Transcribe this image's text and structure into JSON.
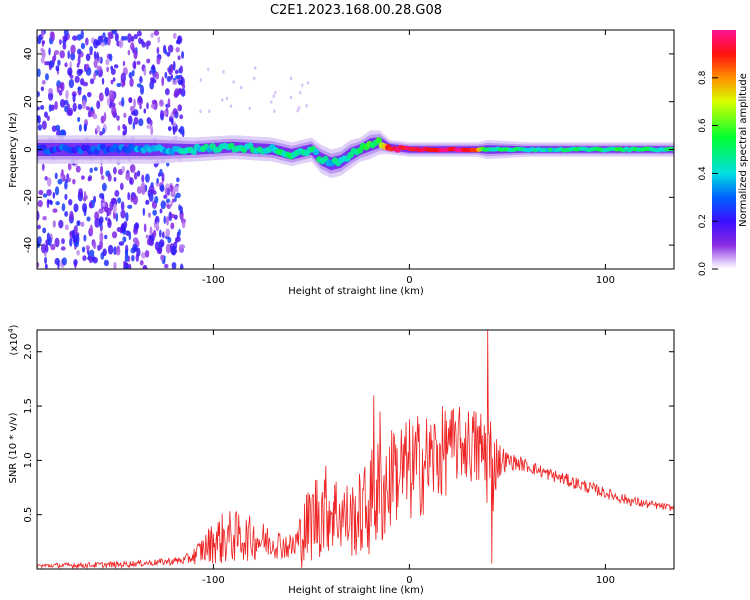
{
  "title": "C2E1.2023.168.00.28.G08",
  "colors": {
    "snr_line": "#ee2222",
    "spectrogram_core": "#33dd55",
    "spectrogram_halo": "#7a2cf0",
    "spectrogram_faint": "#d9c8f6"
  },
  "chart_data": [
    {
      "name": "spectrogram",
      "type": "heatmap",
      "xlabel": "Height of straight line (km)",
      "ylabel": "Frequency (Hz)",
      "xlim": [
        -190,
        135
      ],
      "ylim": [
        -50,
        50
      ],
      "x_ticks": [
        -100,
        0,
        100
      ],
      "x_tick_labels": [
        "-100",
        "0",
        "100"
      ],
      "y_ticks": [
        -40,
        -20,
        0,
        20,
        40
      ],
      "y_tick_labels": [
        "-40",
        "-20",
        "0",
        "20",
        "40"
      ],
      "colorbar": {
        "label": "Normalized spectral amplitude",
        "range": [
          0.0,
          1.0
        ],
        "ticks": [
          0.0,
          0.2,
          0.4,
          0.6,
          0.8
        ],
        "tick_labels": [
          "0.0",
          "0.2",
          "0.4",
          "0.6",
          "0.8"
        ],
        "colormap": [
          "#ffffff",
          "#7f00ff",
          "#0000ff",
          "#00ffff",
          "#00ff00",
          "#ffff00",
          "#ff8000",
          "#ff0000",
          "#ff0080"
        ]
      },
      "ridge": {
        "x": [
          -190,
          -170,
          -150,
          -130,
          -110,
          -90,
          -70,
          -60,
          -50,
          -45,
          -40,
          -35,
          -30,
          -25,
          -20,
          -15,
          -10,
          0,
          10,
          20,
          30,
          35,
          40,
          60,
          80,
          100,
          120,
          135
        ],
        "freq": [
          0,
          0,
          0,
          0,
          0,
          1,
          0,
          -2,
          0,
          -4,
          -6,
          -5,
          -2,
          0,
          2,
          3,
          1,
          0,
          0,
          0,
          0,
          0,
          0,
          0,
          0,
          0,
          0,
          0
        ],
        "amplitude": [
          0.25,
          0.25,
          0.3,
          0.35,
          0.4,
          0.45,
          0.45,
          0.45,
          0.45,
          0.45,
          0.4,
          0.45,
          0.5,
          0.5,
          0.55,
          0.6,
          0.9,
          0.95,
          0.9,
          0.95,
          0.95,
          0.8,
          0.5,
          0.45,
          0.45,
          0.5,
          0.5,
          0.45
        ],
        "halo_half_width_hz": [
          6,
          6,
          6,
          6,
          5,
          5,
          5,
          5,
          5,
          6,
          6,
          6,
          6,
          5,
          6,
          5,
          3,
          3,
          3,
          3,
          3,
          3,
          4,
          3,
          3,
          3,
          3,
          3
        ]
      },
      "noise_region_km": [
        -190,
        -115
      ]
    },
    {
      "name": "snr",
      "type": "line",
      "xlabel": "Height of straight line (km)",
      "ylabel": "SNR (10 * v/v)",
      "y_multiplier_label": "(x10",
      "y_multiplier_exp": "4",
      "y_multiplier_close": ")",
      "xlim": [
        -190,
        135
      ],
      "ylim": [
        0,
        2.2
      ],
      "x_ticks": [
        -100,
        0,
        100
      ],
      "x_tick_labels": [
        "-100",
        "0",
        "100"
      ],
      "y_ticks": [
        0.5,
        1.0,
        1.5,
        2.0
      ],
      "y_tick_labels": [
        "0.5",
        "1.0",
        "1.5",
        "2.0"
      ],
      "envelope": {
        "x": [
          -190,
          -150,
          -130,
          -115,
          -110,
          -100,
          -95,
          -90,
          -80,
          -70,
          -60,
          -55,
          -50,
          -45,
          -40,
          -35,
          -30,
          -25,
          -20,
          -15,
          -10,
          -5,
          0,
          5,
          10,
          15,
          20,
          25,
          30,
          35,
          40,
          42,
          45,
          50,
          60,
          70,
          80,
          90,
          100,
          110,
          120,
          135
        ],
        "mean": [
          0.03,
          0.04,
          0.06,
          0.08,
          0.12,
          0.25,
          0.28,
          0.3,
          0.28,
          0.25,
          0.2,
          0.28,
          0.45,
          0.55,
          0.55,
          0.5,
          0.45,
          0.5,
          0.6,
          0.7,
          0.8,
          0.9,
          0.9,
          0.95,
          1.0,
          1.05,
          1.1,
          1.15,
          1.15,
          1.1,
          1.05,
          1.0,
          1.0,
          1.0,
          0.95,
          0.88,
          0.82,
          0.76,
          0.7,
          0.64,
          0.6,
          0.56
        ],
        "spread": [
          0.02,
          0.03,
          0.03,
          0.04,
          0.08,
          0.2,
          0.25,
          0.25,
          0.2,
          0.15,
          0.12,
          0.3,
          0.4,
          0.45,
          0.4,
          0.35,
          0.35,
          0.4,
          0.5,
          0.55,
          0.5,
          0.5,
          0.5,
          0.5,
          0.45,
          0.45,
          0.4,
          0.35,
          0.35,
          0.4,
          0.5,
          0.6,
          0.2,
          0.08,
          0.06,
          0.06,
          0.06,
          0.06,
          0.05,
          0.05,
          0.04,
          0.03
        ]
      },
      "peaks": [
        {
          "x": -18,
          "y": 1.6
        },
        {
          "x": -15,
          "y": 1.45
        },
        {
          "x": -8,
          "y": 1.25
        },
        {
          "x": 20,
          "y": 1.3
        },
        {
          "x": 40,
          "y": 2.2
        },
        {
          "x": 42,
          "y": 0.05
        }
      ]
    }
  ]
}
